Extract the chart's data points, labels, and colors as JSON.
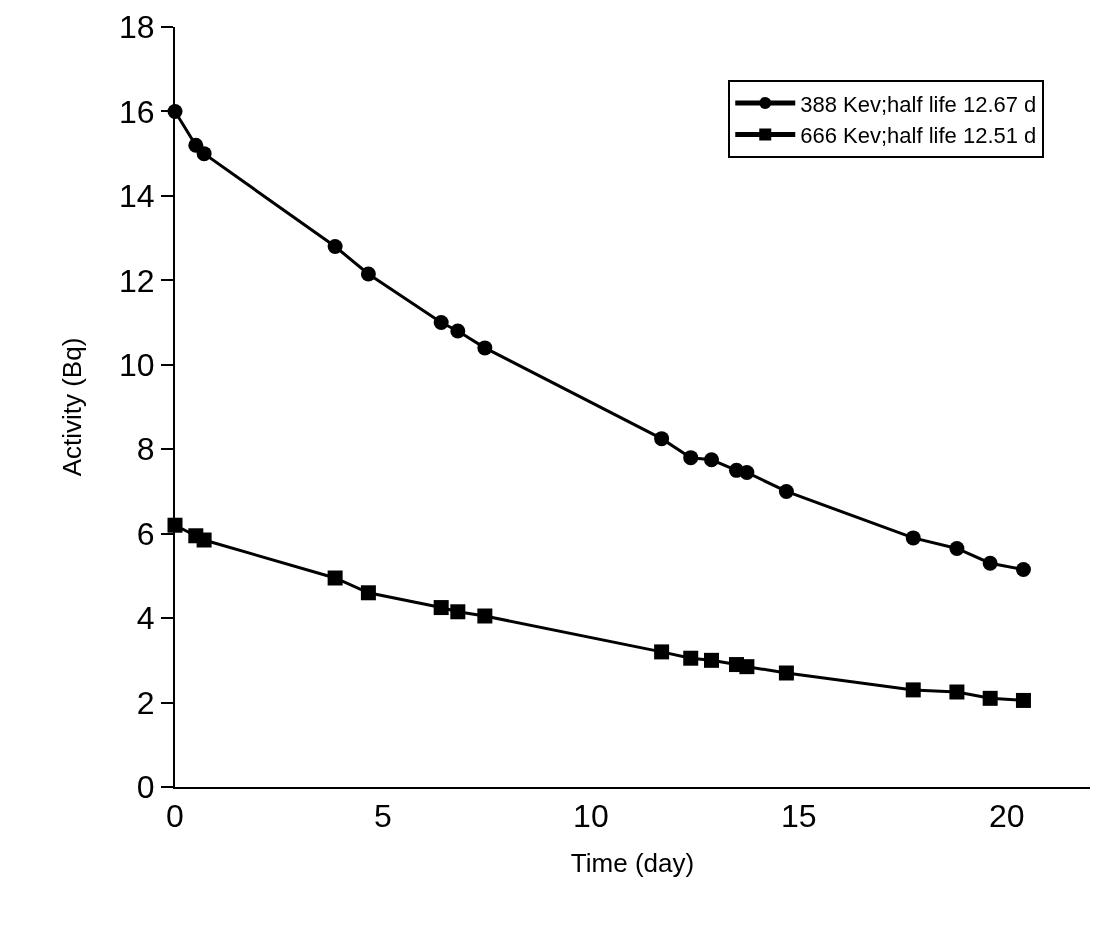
{
  "chart_data": {
    "type": "line",
    "xlabel": "Time (day)",
    "ylabel": "Activity (Bq)",
    "series": [
      {
        "name": "388 Kev;half life 12.67 d",
        "color": "#000000",
        "marker": "circle",
        "x": [
          0,
          0.5,
          0.7,
          3.85,
          4.65,
          6.4,
          6.8,
          7.45,
          11.7,
          12.4,
          12.9,
          13.5,
          13.75,
          14.7,
          17.75,
          18.8,
          19.6,
          20.4
        ],
        "values": [
          16.0,
          15.2,
          15.0,
          12.8,
          12.15,
          11.0,
          10.8,
          10.4,
          8.25,
          7.8,
          7.75,
          7.5,
          7.45,
          7.0,
          5.9,
          5.65,
          5.3,
          5.15
        ]
      },
      {
        "name": "666 Kev;half life 12.51 d",
        "color": "#000000",
        "marker": "square",
        "x": [
          0,
          0.5,
          0.7,
          3.85,
          4.65,
          6.4,
          6.8,
          7.45,
          11.7,
          12.4,
          12.9,
          13.5,
          13.75,
          14.7,
          17.75,
          18.8,
          19.6,
          20.4
        ],
        "values": [
          6.2,
          5.95,
          5.85,
          4.95,
          4.6,
          4.25,
          4.15,
          4.05,
          3.2,
          3.05,
          3.0,
          2.9,
          2.85,
          2.7,
          2.3,
          2.25,
          2.1,
          2.05
        ]
      }
    ],
    "xlim": [
      0,
      22
    ],
    "xticks": [
      0,
      5,
      10,
      15,
      20
    ],
    "ylim": [
      0,
      18
    ],
    "yticks": [
      0,
      2,
      4,
      6,
      8,
      10,
      12,
      14,
      16,
      18
    ],
    "grid": false,
    "legend": "top right",
    "line_style": "solid"
  }
}
